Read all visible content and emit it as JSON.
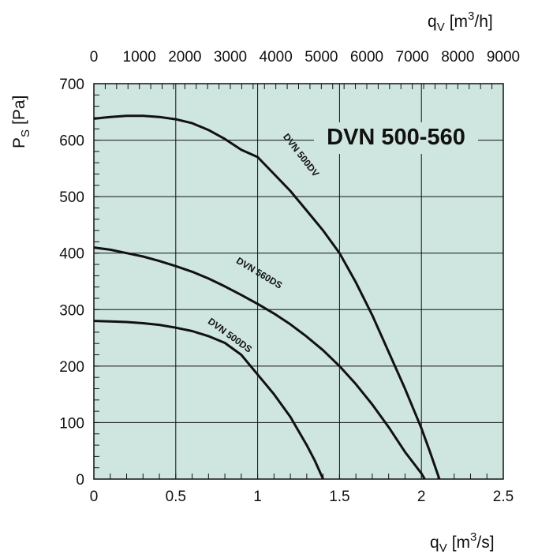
{
  "chart_data": {
    "type": "line",
    "title": "DVN 500-560",
    "xlabel": {
      "main": "q",
      "sub": "V",
      "unit_open": "[m",
      "sup": "3",
      "unit_close": "/s]"
    },
    "ylabel": {
      "main": "P",
      "sub": "S",
      "unit": "[Pa]"
    },
    "x2label": {
      "main": "q",
      "sub": "V",
      "unit_open": "[m",
      "sup": "3",
      "unit_close": "/h]"
    },
    "xlim": [
      0,
      2.5
    ],
    "ylim": [
      0,
      700
    ],
    "x2lim": [
      0,
      9000
    ],
    "xticks": [
      "0",
      "0.5",
      "1",
      "1.5",
      "2",
      "2.5"
    ],
    "yticks": [
      "0",
      "100",
      "200",
      "300",
      "400",
      "500",
      "600",
      "700"
    ],
    "x2ticks": [
      "0",
      "1000",
      "2000",
      "3000",
      "4000",
      "5000",
      "6000",
      "7000",
      "8000",
      "9000"
    ],
    "grid": true,
    "background": "#cfe5df",
    "line_color": "#111111",
    "series": [
      {
        "name": "DVN 500DV",
        "x": [
          0,
          0.1,
          0.2,
          0.3,
          0.4,
          0.5,
          0.6,
          0.7,
          0.8,
          0.9,
          1.0,
          1.1,
          1.2,
          1.3,
          1.4,
          1.5,
          1.6,
          1.7,
          1.8,
          1.9,
          2.0,
          2.05,
          2.11
        ],
        "y": [
          638,
          641,
          643,
          643,
          641,
          637,
          630,
          618,
          602,
          583,
          570,
          540,
          510,
          475,
          440,
          400,
          348,
          290,
          225,
          160,
          90,
          50,
          0
        ]
      },
      {
        "name": "DVN 560DS",
        "x": [
          0,
          0.1,
          0.2,
          0.3,
          0.4,
          0.5,
          0.6,
          0.7,
          0.8,
          0.9,
          1.0,
          1.1,
          1.2,
          1.3,
          1.4,
          1.5,
          1.6,
          1.7,
          1.8,
          1.9,
          2.0,
          2.02
        ],
        "y": [
          410,
          406,
          400,
          394,
          386,
          377,
          367,
          355,
          341,
          326,
          310,
          293,
          274,
          252,
          228,
          200,
          168,
          132,
          92,
          48,
          10,
          0
        ]
      },
      {
        "name": "DVN 500DS",
        "x": [
          0,
          0.1,
          0.2,
          0.3,
          0.4,
          0.5,
          0.6,
          0.7,
          0.8,
          0.9,
          1.0,
          1.1,
          1.2,
          1.3,
          1.35,
          1.4
        ],
        "y": [
          280,
          279,
          278,
          276,
          273,
          268,
          262,
          253,
          241,
          220,
          185,
          150,
          110,
          60,
          32,
          0
        ]
      }
    ]
  }
}
